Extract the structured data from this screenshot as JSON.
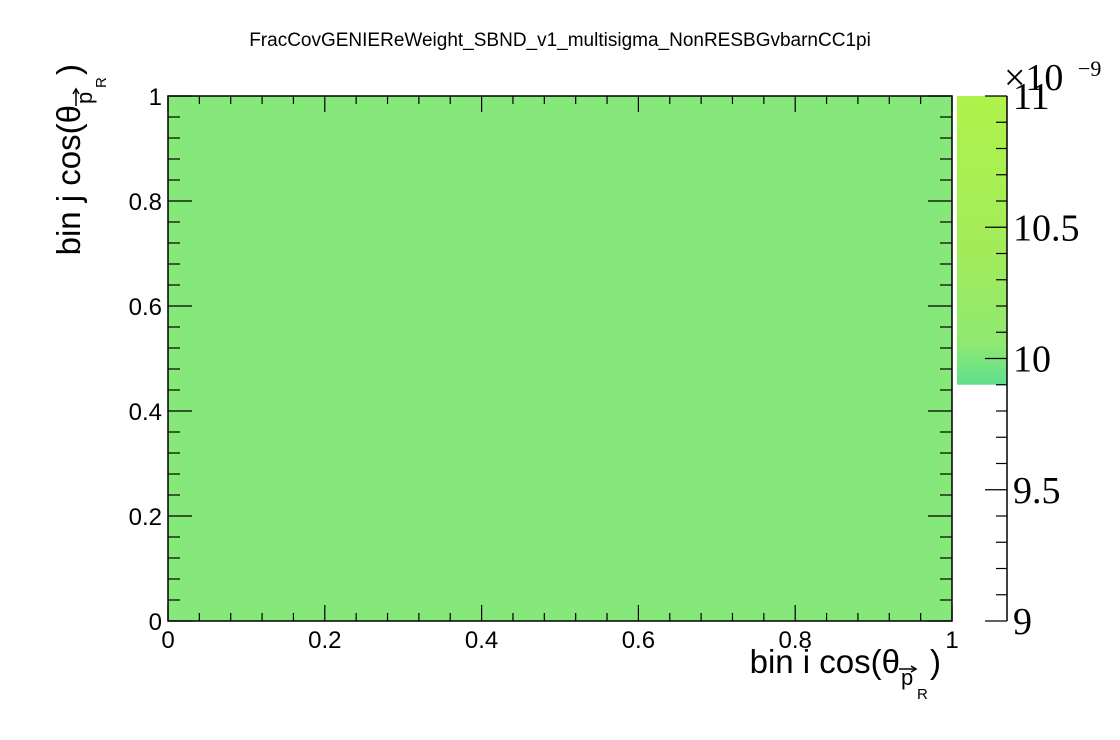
{
  "chart_data": {
    "type": "heatmap",
    "title": "FracCovGENIEReWeight_SBND_v1_multisigma_NonRESBGvbarnCC1pi",
    "xlabel": {
      "main": "bin i cos(θ",
      "sub_vec": "p",
      "sub_sub": "R",
      "close": ")"
    },
    "ylabel": {
      "main": "bin j cos(θ",
      "sub_vec": "p",
      "sub_sub": "R",
      "close": ")"
    },
    "xlim": [
      0,
      1
    ],
    "ylim": [
      0,
      1
    ],
    "x_ticks": [
      "0",
      "0.2",
      "0.4",
      "0.6",
      "0.8",
      "1"
    ],
    "y_ticks": [
      "0",
      "0.2",
      "0.4",
      "0.6",
      "0.8",
      "1"
    ],
    "cells": [
      {
        "x": [
          0,
          1
        ],
        "y": [
          0,
          1
        ],
        "value": 9.97e-09,
        "color": "#86e87a"
      }
    ],
    "colorbar": {
      "range": [
        9,
        11
      ],
      "tick_values": [
        9,
        9.5,
        10,
        10.5,
        11
      ],
      "tick_labels": [
        "9",
        "9.5",
        "10",
        "10.5",
        "11"
      ],
      "exponent_label": "×10",
      "exponent_power": "−9",
      "filled_from": 9.9,
      "gradient": [
        {
          "value": 9.9,
          "color": "#5ee08f"
        },
        {
          "value": 10.05,
          "color": "#8ee872"
        },
        {
          "value": 10.4,
          "color": "#a2ec5a"
        },
        {
          "value": 11,
          "color": "#aef24a"
        }
      ]
    }
  }
}
